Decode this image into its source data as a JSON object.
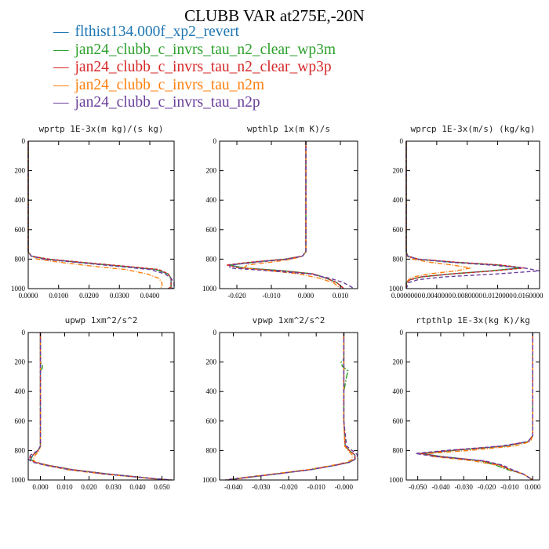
{
  "title": "CLUBB VAR at275E,-20N",
  "legend": [
    {
      "label": "flthist134.000f_xp2_revert",
      "color": "#1f77b4"
    },
    {
      "label": "jan24_clubb_c_invrs_tau_n2_clear_wp3m",
      "color": "#2ca02c"
    },
    {
      "label": "jan24_clubb_c_invrs_tau_n2_clear_wp3p",
      "color": "#d62728"
    },
    {
      "label": "jan24_clubb_c_invrs_tau_n2m",
      "color": "#ff7f0e"
    },
    {
      "label": "jan24_clubb_c_invrs_tau_n2p",
      "color": "#6a3d9a"
    }
  ],
  "chart_data": [
    {
      "type": "line",
      "title": "wprtp  1E-3x(m kg)/(s kg)",
      "xlim": [
        0,
        0.048
      ],
      "ylim": [
        1000,
        0
      ],
      "xticks": [
        0,
        0.01,
        0.02,
        0.03,
        0.04
      ],
      "xticklabels": [
        "0.0000",
        "0.0100",
        "0.0200",
        "0.0300",
        "0.0400"
      ],
      "yticks": [
        0,
        200,
        400,
        600,
        800,
        1000
      ],
      "y": [
        0,
        200,
        400,
        600,
        750,
        780,
        800,
        820,
        850,
        870,
        900,
        930,
        960,
        990,
        1000
      ],
      "series": [
        {
          "x": [
            0,
            0,
            0,
            0,
            0,
            0.001,
            0.006,
            0.016,
            0.032,
            0.042,
            0.046,
            0.047,
            0.047,
            0.047,
            0.046
          ]
        },
        {
          "x": [
            0,
            0,
            0,
            0,
            0,
            0.001,
            0.006,
            0.016,
            0.032,
            0.042,
            0.046,
            0.047,
            0.047,
            0.047,
            0.046
          ]
        },
        {
          "x": [
            0,
            0,
            0,
            0,
            0,
            0.001,
            0.007,
            0.017,
            0.033,
            0.043,
            0.046,
            0.047,
            0.047,
            0.047,
            0.046
          ]
        },
        {
          "x": [
            0,
            0,
            0,
            0,
            0,
            0.001,
            0.003,
            0.01,
            0.022,
            0.032,
            0.039,
            0.043,
            0.044,
            0.044,
            0.043
          ]
        },
        {
          "x": [
            0,
            0,
            0,
            0,
            0,
            0.001,
            0.005,
            0.015,
            0.03,
            0.04,
            0.045,
            0.047,
            0.048,
            0.048,
            0.047
          ]
        }
      ]
    },
    {
      "type": "line",
      "title": "wpthlp  1x(m K)/s",
      "xlim": [
        -0.025,
        0.015
      ],
      "ylim": [
        1000,
        0
      ],
      "xticks": [
        -0.02,
        -0.01,
        0,
        0.01
      ],
      "xticklabels": [
        "-0.020",
        "-0.010",
        "0.000",
        "0.010"
      ],
      "yticks": [
        0,
        200,
        400,
        600,
        800,
        1000
      ],
      "y": [
        0,
        200,
        400,
        600,
        750,
        780,
        800,
        820,
        840,
        860,
        880,
        900,
        930,
        960,
        1000
      ],
      "series": [
        {
          "x": [
            0,
            0,
            0,
            0,
            0,
            -0.001,
            -0.006,
            -0.015,
            -0.022,
            -0.018,
            -0.006,
            0.002,
            0.006,
            0.009,
            0.011
          ]
        },
        {
          "x": [
            0,
            0,
            0,
            0,
            0,
            -0.001,
            -0.006,
            -0.015,
            -0.022,
            -0.018,
            -0.006,
            0.002,
            0.006,
            0.009,
            0.011
          ]
        },
        {
          "x": [
            0,
            0,
            0,
            0,
            0,
            -0.001,
            -0.006,
            -0.016,
            -0.023,
            -0.019,
            -0.007,
            0.002,
            0.006,
            0.009,
            0.011
          ]
        },
        {
          "x": [
            0,
            0,
            0,
            0,
            0,
            -0.001,
            -0.004,
            -0.01,
            -0.017,
            -0.018,
            -0.01,
            -0.002,
            0.004,
            0.008,
            0.01
          ]
        },
        {
          "x": [
            0,
            0,
            0,
            0,
            0,
            -0.001,
            -0.005,
            -0.014,
            -0.022,
            -0.022,
            -0.01,
            0.001,
            0.007,
            0.011,
            0.014
          ]
        }
      ]
    },
    {
      "type": "line",
      "title": "wprcp  1E-3x(m/s) (kg/kg)",
      "xlim": [
        0,
        0.0175
      ],
      "ylim": [
        1000,
        0
      ],
      "xticks": [
        0,
        0.004,
        0.008,
        0.012,
        0.016
      ],
      "xticklabels": [
        "0.0000000",
        "0.0040000",
        "0.0080000",
        "0.0120000",
        "0.0160000"
      ],
      "yticks": [
        0,
        200,
        400,
        600,
        800,
        1000
      ],
      "y": [
        0,
        200,
        400,
        600,
        750,
        780,
        800,
        820,
        840,
        860,
        880,
        900,
        920,
        940,
        960,
        1000
      ],
      "series": [
        {
          "x": [
            0,
            0,
            0,
            0,
            0,
            0.0002,
            0.0015,
            0.006,
            0.012,
            0.015,
            0.011,
            0.006,
            0.002,
            0.0005,
            0,
            0
          ]
        },
        {
          "x": [
            0,
            0,
            0,
            0,
            0,
            0.0002,
            0.0015,
            0.006,
            0.012,
            0.015,
            0.011,
            0.006,
            0.002,
            0.0005,
            0,
            0
          ]
        },
        {
          "x": [
            0,
            0,
            0,
            0,
            0,
            0.0002,
            0.0016,
            0.0065,
            0.0125,
            0.0155,
            0.0115,
            0.006,
            0.002,
            0.0005,
            0,
            0
          ]
        },
        {
          "x": [
            0,
            0,
            0,
            0,
            0,
            0.0001,
            0.0008,
            0.003,
            0.006,
            0.0085,
            0.0065,
            0.003,
            0.001,
            0.0003,
            0,
            0
          ]
        },
        {
          "x": [
            0,
            0,
            0,
            0,
            0,
            0.0002,
            0.0014,
            0.0055,
            0.011,
            0.0155,
            0.0175,
            0.012,
            0.005,
            0.0015,
            0.0003,
            0
          ]
        }
      ]
    },
    {
      "type": "line",
      "title": "upwp  1xm^2/s^2",
      "xlim": [
        -0.005,
        0.055
      ],
      "ylim": [
        1000,
        0
      ],
      "xticks": [
        0,
        0.01,
        0.02,
        0.03,
        0.04,
        0.05
      ],
      "xticklabels": [
        "0.000",
        "0.010",
        "0.020",
        "0.030",
        "0.040",
        "0.050"
      ],
      "yticks": [
        0,
        200,
        400,
        600,
        800,
        1000
      ],
      "y": [
        0,
        200,
        220,
        240,
        260,
        400,
        600,
        770,
        800,
        830,
        860,
        880,
        900,
        930,
        960,
        990,
        1000
      ],
      "series": [
        {
          "x": [
            0,
            0,
            0,
            0,
            0,
            0,
            0,
            0,
            -0.001,
            -0.003,
            -0.004,
            -0.002,
            0.003,
            0.013,
            0.028,
            0.046,
            0.053
          ]
        },
        {
          "x": [
            0,
            0,
            0.0008,
            0.0008,
            0,
            0,
            0,
            0,
            -0.001,
            -0.003,
            -0.004,
            -0.002,
            0.003,
            0.013,
            0.028,
            0.046,
            0.053
          ]
        },
        {
          "x": [
            0,
            0,
            0,
            0,
            0,
            0,
            0,
            0,
            -0.001,
            -0.003,
            -0.005,
            -0.002,
            0.003,
            0.013,
            0.028,
            0.046,
            0.053
          ]
        },
        {
          "x": [
            0,
            0,
            0,
            0,
            0,
            0,
            0,
            0,
            -0.0005,
            -0.002,
            -0.003,
            -0.002,
            0.002,
            0.011,
            0.026,
            0.045,
            0.052
          ]
        },
        {
          "x": [
            0,
            0,
            0,
            0,
            0,
            0,
            0,
            0,
            -0.001,
            -0.004,
            -0.005,
            -0.003,
            0.002,
            0.012,
            0.027,
            0.046,
            0.054
          ]
        }
      ]
    },
    {
      "type": "line",
      "title": "vpwp  1xm^2/s^2",
      "xlim": [
        -0.045,
        0.005
      ],
      "ylim": [
        1000,
        0
      ],
      "xticks": [
        -0.04,
        -0.03,
        -0.02,
        -0.01,
        0
      ],
      "xticklabels": [
        "-0.040",
        "-0.030",
        "-0.020",
        "-0.010",
        "-0.000"
      ],
      "yticks": [
        0,
        200,
        400,
        600,
        800,
        1000
      ],
      "y": [
        0,
        180,
        200,
        230,
        260,
        300,
        400,
        600,
        770,
        800,
        830,
        860,
        880,
        900,
        930,
        960,
        990,
        1000
      ],
      "series": [
        {
          "x": [
            0,
            0,
            0,
            0,
            0,
            0,
            0,
            0,
            0.0005,
            0.002,
            0.004,
            0.004,
            0.002,
            -0.003,
            -0.012,
            -0.025,
            -0.038,
            -0.042
          ]
        },
        {
          "x": [
            0,
            0,
            -0.001,
            -0.0005,
            0.0015,
            0.001,
            0,
            0,
            0.0005,
            0.002,
            0.004,
            0.004,
            0.002,
            -0.003,
            -0.012,
            -0.025,
            -0.038,
            -0.042
          ]
        },
        {
          "x": [
            0,
            0,
            0,
            0,
            0,
            0,
            0,
            0,
            0.0005,
            0.002,
            0.004,
            0.004,
            0.002,
            -0.003,
            -0.012,
            -0.025,
            -0.038,
            -0.042
          ]
        },
        {
          "x": [
            0,
            0,
            0,
            0,
            0,
            0,
            0,
            0,
            0.0003,
            0.0015,
            0.003,
            0.003,
            0.001,
            -0.004,
            -0.013,
            -0.026,
            -0.039,
            -0.043
          ]
        },
        {
          "x": [
            0,
            0,
            0,
            0,
            0,
            0,
            0,
            0,
            0.001,
            0.003,
            0.005,
            0.004,
            0.002,
            -0.003,
            -0.012,
            -0.025,
            -0.039,
            -0.043
          ]
        }
      ]
    },
    {
      "type": "line",
      "title": "rtpthlp  1E-3x(kg K)/kg",
      "xlim": [
        -0.055,
        0.003
      ],
      "ylim": [
        1000,
        0
      ],
      "xticks": [
        -0.05,
        -0.04,
        -0.03,
        -0.02,
        -0.01,
        0
      ],
      "xticklabels": [
        "-0.050",
        "-0.040",
        "-0.030",
        "-0.020",
        "-0.010",
        "0.000"
      ],
      "yticks": [
        0,
        200,
        400,
        600,
        800,
        1000
      ],
      "y": [
        0,
        200,
        400,
        600,
        700,
        740,
        770,
        800,
        820,
        840,
        870,
        900,
        930,
        960,
        1000
      ],
      "series": [
        {
          "x": [
            0,
            0,
            0,
            0,
            0,
            -0.002,
            -0.012,
            -0.035,
            -0.048,
            -0.04,
            -0.022,
            -0.014,
            -0.01,
            -0.004,
            0
          ]
        },
        {
          "x": [
            0,
            0,
            0,
            0,
            0,
            -0.002,
            -0.012,
            -0.035,
            -0.049,
            -0.041,
            -0.023,
            -0.016,
            -0.011,
            -0.004,
            0
          ]
        },
        {
          "x": [
            0,
            0,
            0,
            0,
            0,
            -0.002,
            -0.013,
            -0.036,
            -0.049,
            -0.041,
            -0.022,
            -0.014,
            -0.01,
            -0.004,
            0
          ]
        },
        {
          "x": [
            0,
            0,
            0,
            0,
            0,
            -0.001,
            -0.008,
            -0.028,
            -0.045,
            -0.044,
            -0.026,
            -0.015,
            -0.01,
            -0.004,
            0
          ]
        },
        {
          "x": [
            0,
            0,
            0,
            0,
            0,
            -0.002,
            -0.014,
            -0.038,
            -0.051,
            -0.043,
            -0.021,
            -0.013,
            -0.009,
            -0.004,
            0
          ]
        }
      ]
    }
  ]
}
